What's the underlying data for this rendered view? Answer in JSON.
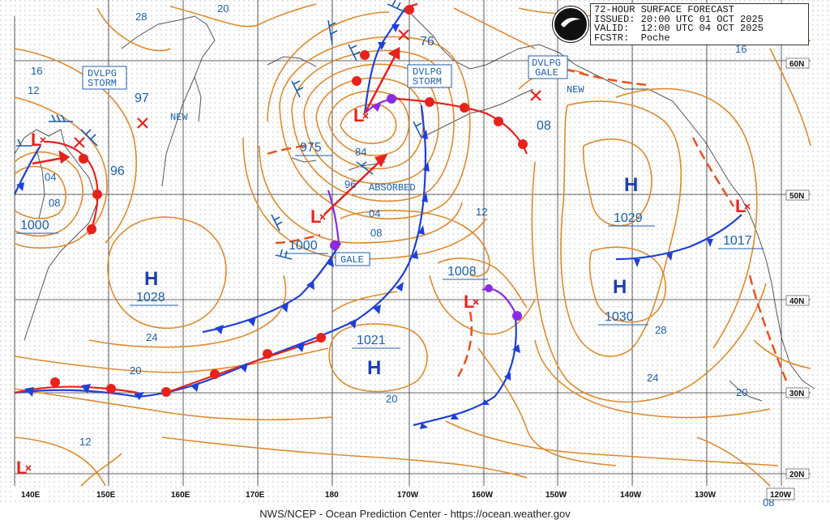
{
  "forecast": {
    "title": "72-HOUR SURFACE FORECAST",
    "issued_label": "ISSUED:",
    "issued": "20:00 UTC 01 OCT 2025",
    "valid_label": "VALID:",
    "valid": "12:00 UTC 04 OCT 2025",
    "fcstr_label": "FCSTR:",
    "forecaster": "Poche"
  },
  "logo_text": "NOAA",
  "footer": "NWS/NCEP - Ocean Prediction Center - https://ocean.weather.gov",
  "colors": {
    "isobar": "#e08a2c",
    "front_blue": "#1e40d8",
    "front_red": "#e8211c",
    "front_purple": "#8a2be2",
    "label_blue": "#1c5fb0",
    "grid": "#333333",
    "dots": "#b0b0b0",
    "coast": "#555555"
  },
  "longitudes": [
    "140E",
    "150E",
    "160E",
    "170E",
    "180",
    "170W",
    "160W",
    "150W",
    "140W",
    "130W",
    "120W"
  ],
  "latitudes": [
    "60N",
    "50N",
    "40N",
    "30N",
    "20N"
  ],
  "systems": [
    {
      "type": "L",
      "value": "1000"
    },
    {
      "type": "L",
      "value": "975"
    },
    {
      "type": "L",
      "value": "1000"
    },
    {
      "type": "L",
      "value": "1008"
    },
    {
      "type": "L",
      "value": "1017"
    },
    {
      "type": "L",
      "value": ""
    },
    {
      "type": "H",
      "value": "1028"
    },
    {
      "type": "H",
      "value": "1021"
    },
    {
      "type": "H",
      "value": "1029"
    },
    {
      "type": "H",
      "value": "1030"
    }
  ],
  "warnings": [
    "DVLPG\nSTORM",
    "DVLPG\nSTORM",
    "DVLPG\nGALE",
    "GALE"
  ],
  "annotations": [
    "NEW",
    "NEW",
    "ABSORBED"
  ],
  "isobar_labels": [
    "28",
    "20",
    "16",
    "12",
    "97",
    "96",
    "04",
    "08",
    "84",
    "96",
    "04",
    "08",
    "76",
    "08",
    "12",
    "16",
    "28",
    "24",
    "24",
    "20",
    "20",
    "12",
    "08",
    "20"
  ]
}
